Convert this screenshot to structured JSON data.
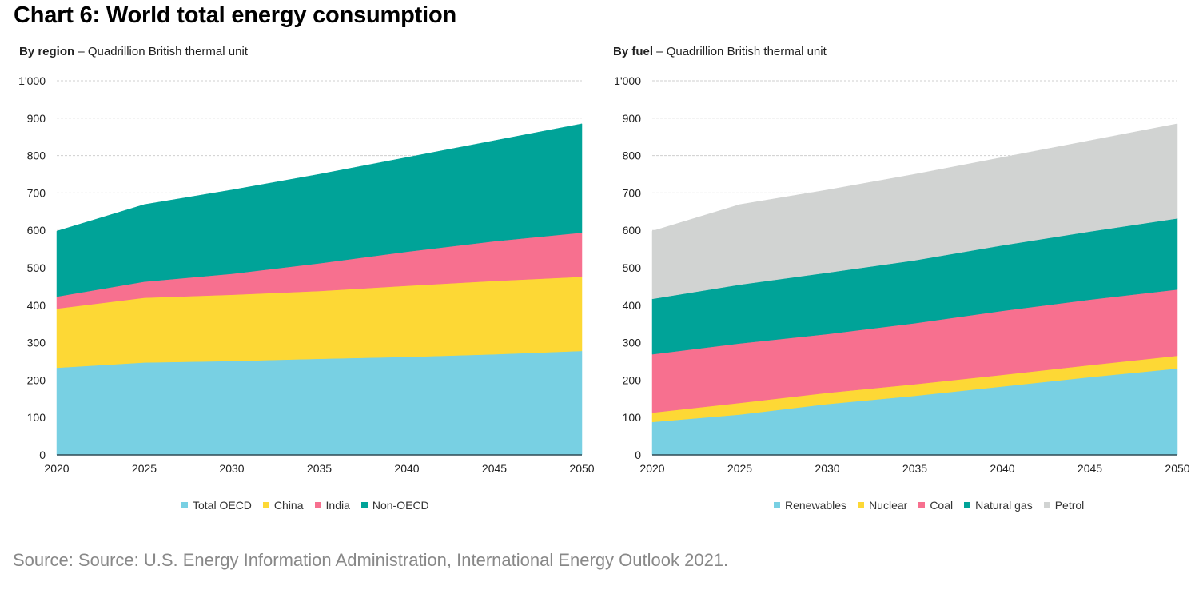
{
  "title": "Chart 6: World total energy consumption",
  "source": "Source: Source: U.S. Energy Information Administration, International Energy Outlook 2021.",
  "chart_data": [
    {
      "type": "area",
      "stacked": true,
      "subtitle_bold": "By region",
      "subtitle_rest": " – Quadrillion British thermal unit",
      "x": [
        2020,
        2025,
        2030,
        2035,
        2040,
        2045,
        2050
      ],
      "x_tick_labels": [
        "2020",
        "2025",
        "2030",
        "2035",
        "2040",
        "2045",
        "2050"
      ],
      "ylim": [
        0,
        1000
      ],
      "y_ticks": [
        0,
        100,
        200,
        300,
        400,
        500,
        600,
        700,
        800,
        900,
        1000
      ],
      "y_tick_labels": [
        "0",
        "100",
        "200",
        "300",
        "400",
        "500",
        "600",
        "700",
        "800",
        "900",
        "1'000"
      ],
      "grid": true,
      "legend_position": "bottom",
      "series": [
        {
          "name": "Total OECD",
          "color": "#78D0E3",
          "values": [
            233,
            247,
            251,
            257,
            262,
            269,
            278
          ]
        },
        {
          "name": "China",
          "color": "#FDD835",
          "values": [
            158,
            173,
            177,
            181,
            190,
            196,
            198
          ]
        },
        {
          "name": "India",
          "color": "#F7708F",
          "values": [
            32,
            43,
            56,
            74,
            91,
            106,
            118
          ]
        },
        {
          "name": "Non-OECD",
          "color": "#00A398",
          "values": [
            175,
            206,
            224,
            238,
            252,
            269,
            291
          ]
        }
      ]
    },
    {
      "type": "area",
      "stacked": true,
      "subtitle_bold": "By fuel",
      "subtitle_rest": " – Quadrillion British thermal unit",
      "x": [
        2020,
        2025,
        2030,
        2035,
        2040,
        2045,
        2050
      ],
      "x_tick_labels": [
        "2020",
        "2025",
        "2030",
        "2035",
        "2040",
        "2045",
        "2050"
      ],
      "ylim": [
        0,
        1000
      ],
      "y_ticks": [
        0,
        100,
        200,
        300,
        400,
        500,
        600,
        700,
        800,
        900,
        1000
      ],
      "y_tick_labels": [
        "0",
        "100",
        "200",
        "300",
        "400",
        "500",
        "600",
        "700",
        "800",
        "900",
        "1'000"
      ],
      "grid": true,
      "legend_position": "bottom",
      "series": [
        {
          "name": "Renewables",
          "color": "#78D0E3",
          "values": [
            88,
            108,
            136,
            158,
            183,
            208,
            231
          ]
        },
        {
          "name": "Nuclear",
          "color": "#FDD835",
          "values": [
            25,
            31,
            30,
            31,
            31,
            32,
            34
          ]
        },
        {
          "name": "Coal",
          "color": "#F7708F",
          "values": [
            156,
            159,
            157,
            163,
            171,
            175,
            177
          ]
        },
        {
          "name": "Natural gas",
          "color": "#00A398",
          "values": [
            148,
            157,
            164,
            168,
            175,
            182,
            190
          ]
        },
        {
          "name": "Petrol",
          "color": "#D1D3D2",
          "values": [
            181,
            214,
            221,
            230,
            235,
            243,
            253
          ]
        }
      ]
    }
  ]
}
